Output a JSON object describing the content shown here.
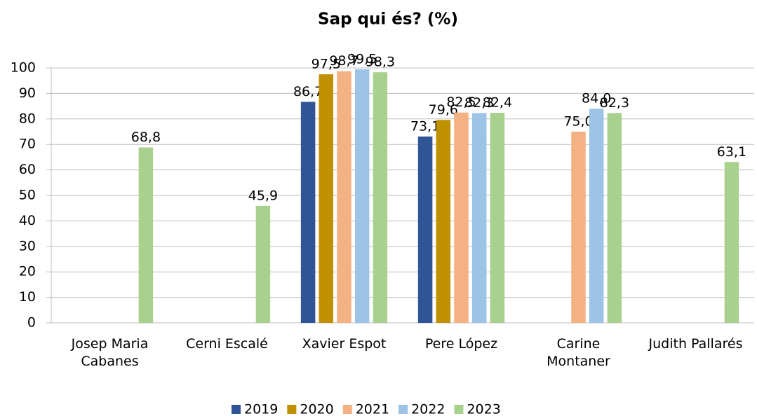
{
  "chart_data": {
    "type": "bar",
    "title": "Sap qui és? (%)",
    "categories": [
      "Josep Maria\nCabanes",
      "Cerni Escalé",
      "Xavier Espot",
      "Pere López",
      "Carine\nMontaner",
      "Judith Pallarés"
    ],
    "series": [
      {
        "name": "2019",
        "color": "#2f5597",
        "values": [
          null,
          null,
          86.7,
          73.1,
          null,
          null
        ],
        "value_labels": [
          null,
          null,
          "86,7",
          "73,1",
          null,
          null
        ]
      },
      {
        "name": "2020",
        "color": "#bf9000",
        "values": [
          null,
          null,
          97.5,
          79.6,
          null,
          null
        ],
        "value_labels": [
          null,
          null,
          "97,5",
          "79,6",
          null,
          null
        ]
      },
      {
        "name": "2021",
        "color": "#f4b183",
        "values": [
          null,
          null,
          98.7,
          82.5,
          75.0,
          null
        ],
        "value_labels": [
          null,
          null,
          "98,7",
          "82,5",
          "75,0",
          null
        ]
      },
      {
        "name": "2022",
        "color": "#9dc3e6",
        "values": [
          null,
          null,
          99.5,
          82.3,
          84.0,
          null
        ],
        "value_labels": [
          null,
          null,
          "99,5",
          "82,3",
          "84,0",
          null
        ]
      },
      {
        "name": "2023",
        "color": "#a9d18e",
        "values": [
          68.8,
          45.9,
          98.3,
          82.4,
          82.3,
          63.1
        ],
        "value_labels": [
          "68,8",
          "45,9",
          "98,3",
          "82,4",
          "82,3",
          "63,1"
        ]
      }
    ],
    "ylim": [
      0,
      100
    ],
    "yticks": [
      0,
      10,
      20,
      30,
      40,
      50,
      60,
      70,
      80,
      90,
      100
    ],
    "grid": true,
    "legend": "bottom"
  }
}
